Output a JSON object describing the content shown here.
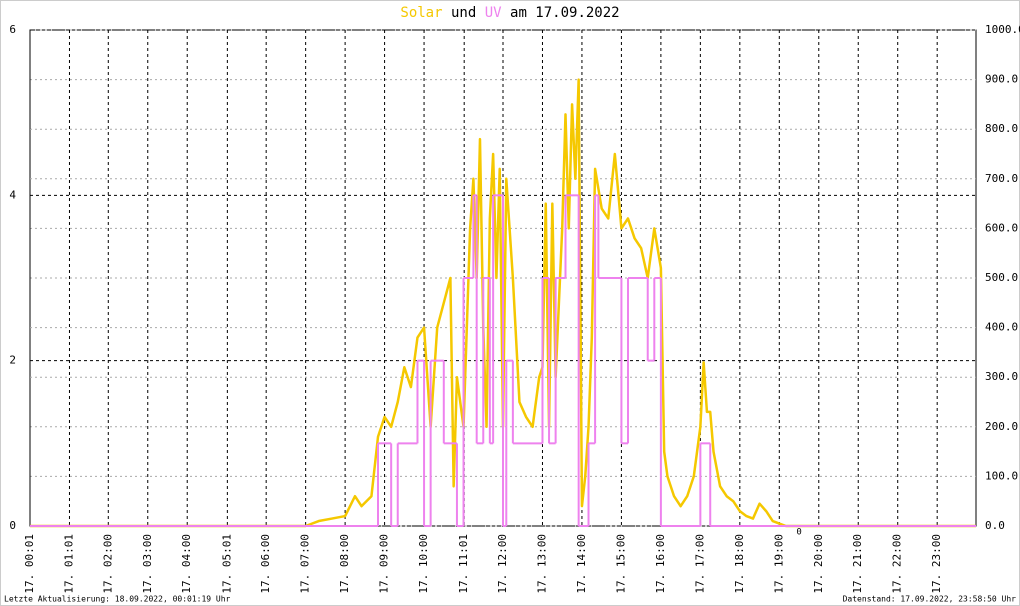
{
  "chart_data": {
    "type": "line",
    "title_parts": [
      "Solar",
      "und",
      "UV",
      "am 17.09.2022"
    ],
    "xlim": [
      1,
      1439
    ],
    "xticks": [
      {
        "value": 1,
        "label": "17. 00:01"
      },
      {
        "value": 61,
        "label": "17. 01:01"
      },
      {
        "value": 120,
        "label": "17. 02:00"
      },
      {
        "value": 180,
        "label": "17. 03:00"
      },
      {
        "value": 240,
        "label": "17. 04:00"
      },
      {
        "value": 301,
        "label": "17. 05:01"
      },
      {
        "value": 360,
        "label": "17. 06:00"
      },
      {
        "value": 420,
        "label": "17. 07:00"
      },
      {
        "value": 480,
        "label": "17. 08:00"
      },
      {
        "value": 540,
        "label": "17. 09:00"
      },
      {
        "value": 600,
        "label": "17. 10:00"
      },
      {
        "value": 661,
        "label": "17. 11:01"
      },
      {
        "value": 720,
        "label": "17. 12:00"
      },
      {
        "value": 780,
        "label": "17. 13:00"
      },
      {
        "value": 840,
        "label": "17. 14:00"
      },
      {
        "value": 900,
        "label": "17. 15:00"
      },
      {
        "value": 960,
        "label": "17. 16:00"
      },
      {
        "value": 1020,
        "label": "17. 17:00"
      },
      {
        "value": 1080,
        "label": "17. 18:00"
      },
      {
        "value": 1140,
        "label": "17. 19:00"
      },
      {
        "value": 1200,
        "label": "17. 20:00"
      },
      {
        "value": 1260,
        "label": "17. 21:00"
      },
      {
        "value": 1320,
        "label": "17. 22:00"
      },
      {
        "value": 1380,
        "label": "17. 23:00"
      }
    ],
    "ylim": [
      0,
      6
    ],
    "yticks": [
      0,
      2,
      4,
      6
    ],
    "y2lim": [
      0,
      1000
    ],
    "y2ticks": [
      {
        "value": 0,
        "label": "0.0"
      },
      {
        "value": 100,
        "label": "100.0"
      },
      {
        "value": 200,
        "label": "200.0"
      },
      {
        "value": 300,
        "label": "300.0"
      },
      {
        "value": 400,
        "label": "400.0"
      },
      {
        "value": 500,
        "label": "500.0"
      },
      {
        "value": 600,
        "label": "600.0"
      },
      {
        "value": 700,
        "label": "700.0"
      },
      {
        "value": 800,
        "label": "800.0"
      },
      {
        "value": 900,
        "label": "900.0"
      },
      {
        "value": 1000,
        "label": "1000.0"
      }
    ],
    "grid": true,
    "series": [
      {
        "name": "Solar",
        "color": "#f5c800",
        "axis": "y2",
        "step": false,
        "x": [
          1,
          420,
          440,
          460,
          480,
          495,
          505,
          520,
          530,
          540,
          550,
          560,
          570,
          580,
          590,
          600,
          610,
          620,
          630,
          640,
          645,
          650,
          660,
          665,
          670,
          675,
          680,
          685,
          690,
          695,
          700,
          705,
          710,
          715,
          720,
          725,
          735,
          745,
          755,
          765,
          775,
          780,
          785,
          790,
          795,
          800,
          810,
          815,
          820,
          825,
          830,
          835,
          840,
          845,
          850,
          855,
          860,
          865,
          870,
          880,
          890,
          900,
          910,
          920,
          930,
          940,
          950,
          960,
          965,
          970,
          980,
          990,
          1000,
          1010,
          1020,
          1025,
          1030,
          1035,
          1040,
          1050,
          1060,
          1070,
          1080,
          1090,
          1100,
          1110,
          1120,
          1130,
          1140,
          1150,
          1439
        ],
        "values": [
          0,
          0,
          10,
          15,
          20,
          60,
          40,
          60,
          180,
          220,
          200,
          250,
          320,
          280,
          380,
          400,
          200,
          400,
          450,
          500,
          80,
          300,
          200,
          400,
          600,
          700,
          500,
          780,
          400,
          200,
          620,
          750,
          500,
          720,
          200,
          700,
          500,
          250,
          220,
          200,
          300,
          320,
          650,
          200,
          650,
          300,
          600,
          830,
          600,
          850,
          700,
          900,
          40,
          100,
          200,
          380,
          720,
          680,
          640,
          620,
          750,
          600,
          620,
          580,
          560,
          500,
          600,
          520,
          150,
          100,
          60,
          40,
          60,
          100,
          200,
          330,
          230,
          230,
          150,
          80,
          60,
          50,
          30,
          20,
          15,
          45,
          30,
          10,
          5,
          0,
          0
        ]
      },
      {
        "name": "UV",
        "color": "#ee82ee",
        "axis": "y",
        "step": true,
        "x": [
          1,
          530,
          550,
          560,
          590,
          600,
          610,
          630,
          650,
          660,
          675,
          680,
          690,
          700,
          705,
          720,
          725,
          735,
          780,
          790,
          800,
          815,
          835,
          850,
          860,
          865,
          900,
          910,
          940,
          950,
          960,
          1020,
          1035,
          1439
        ],
        "values": [
          0,
          1,
          0,
          1,
          2,
          0,
          2,
          1,
          0,
          3,
          4,
          1,
          3,
          1,
          4,
          0,
          2,
          1,
          3,
          1,
          3,
          4,
          0,
          1,
          4,
          3,
          1,
          3,
          2,
          3,
          0,
          1,
          0,
          0
        ]
      }
    ],
    "annotations": [
      {
        "text": "0",
        "x": 1170,
        "color": "#e03030"
      }
    ],
    "footer_left": "Letzte Aktualisierung: 18.09.2022, 00:01:19 Uhr",
    "footer_right": "Datenstand: 17.09.2022, 23:58:50 Uhr"
  }
}
